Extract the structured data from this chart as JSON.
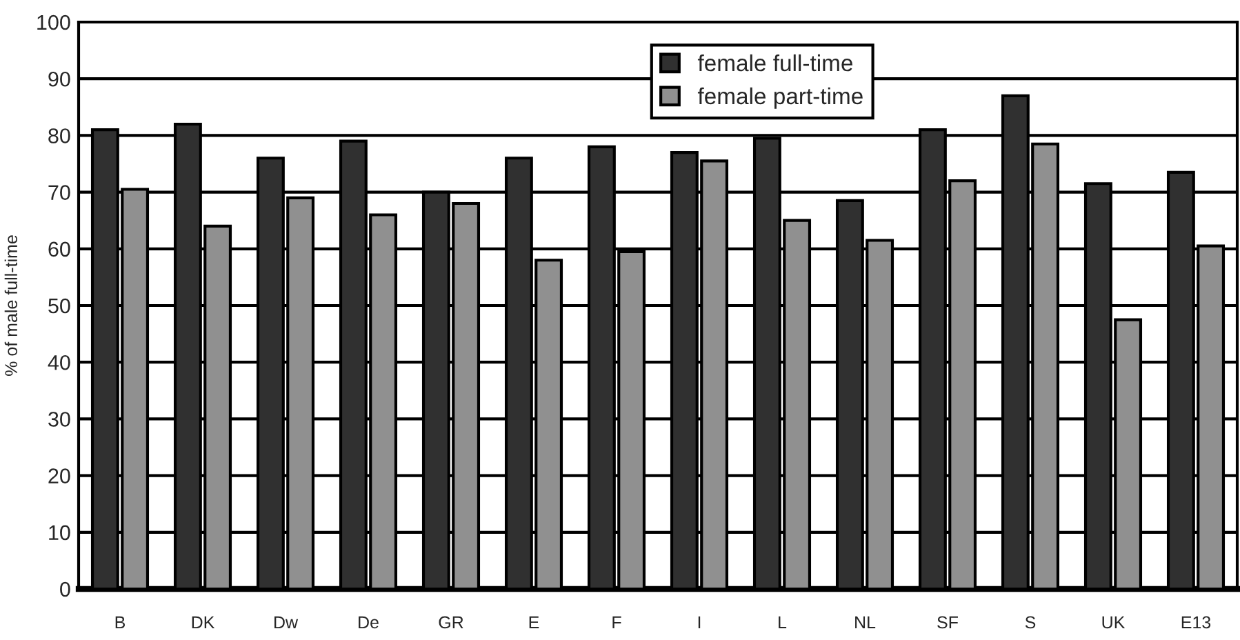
{
  "chart_data": {
    "type": "bar",
    "ylabel": "% of male full-time",
    "categories": [
      "B",
      "DK",
      "Dw",
      "De",
      "GR",
      "E",
      "F",
      "I",
      "L",
      "NL",
      "SF",
      "S",
      "UK",
      "E13"
    ],
    "series": [
      {
        "name": "female full-time",
        "color": "#303030",
        "values": [
          81,
          82,
          76,
          79,
          70,
          76,
          78,
          77,
          79.5,
          68.5,
          81,
          87,
          71.5,
          73.5
        ]
      },
      {
        "name": "female part-time",
        "color": "#909090",
        "values": [
          70.5,
          64,
          69,
          66,
          68,
          58,
          59.5,
          75.5,
          65,
          61.5,
          72,
          78.5,
          47.5,
          60.5
        ]
      }
    ],
    "ylim": [
      0,
      100
    ],
    "yticks": [
      0,
      10,
      20,
      30,
      40,
      50,
      60,
      70,
      80,
      90,
      100
    ],
    "grid": "y",
    "legend": "top"
  }
}
